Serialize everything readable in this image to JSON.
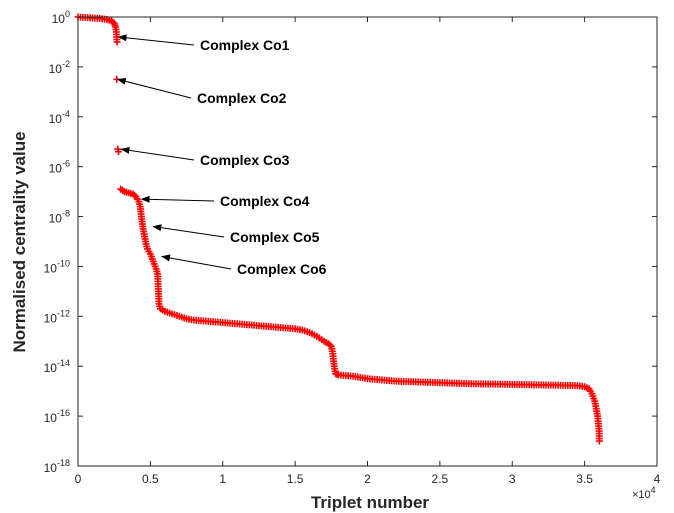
{
  "chart_data": {
    "type": "scatter",
    "xlabel": "Triplet number",
    "ylabel": "Normalised centrality value",
    "x_multiplier": "×10",
    "x_multiplier_exp": "4",
    "xlim": [
      0,
      40000
    ],
    "ylim_log10": [
      -18,
      0
    ],
    "yscale": "log",
    "grid": false,
    "marker": "+",
    "color": "#ff0000",
    "x_ticks": [
      {
        "value": 0,
        "label": "0"
      },
      {
        "value": 5000,
        "label": "0.5"
      },
      {
        "value": 10000,
        "label": "1"
      },
      {
        "value": 15000,
        "label": "1.5"
      },
      {
        "value": 20000,
        "label": "2"
      },
      {
        "value": 25000,
        "label": "2.5"
      },
      {
        "value": 30000,
        "label": "3"
      },
      {
        "value": 35000,
        "label": "3.5"
      },
      {
        "value": 40000,
        "label": "4"
      }
    ],
    "y_ticks": [
      {
        "exp": 0,
        "base": "10",
        "sup": "0"
      },
      {
        "exp": -2,
        "base": "10",
        "sup": "-2"
      },
      {
        "exp": -4,
        "base": "10",
        "sup": "-4"
      },
      {
        "exp": -6,
        "base": "10",
        "sup": "-6"
      },
      {
        "exp": -8,
        "base": "10",
        "sup": "-8"
      },
      {
        "exp": -10,
        "base": "10",
        "sup": "-10"
      },
      {
        "exp": -12,
        "base": "10",
        "sup": "-12"
      },
      {
        "exp": -14,
        "base": "10",
        "sup": "-14"
      },
      {
        "exp": -16,
        "base": "10",
        "sup": "-16"
      },
      {
        "exp": -18,
        "base": "10",
        "sup": "-18"
      }
    ],
    "series_log10": [
      [
        0,
        0.0
      ],
      [
        500,
        -0.02
      ],
      [
        1000,
        -0.04
      ],
      [
        1500,
        -0.06
      ],
      [
        2000,
        -0.1
      ],
      [
        2300,
        -0.15
      ],
      [
        2500,
        -0.25
      ],
      [
        2600,
        -0.4
      ],
      [
        2650,
        -0.6
      ],
      [
        2700,
        -1.0
      ],
      [
        2680,
        -2.5
      ],
      [
        2750,
        -5.3
      ],
      [
        2800,
        -5.4
      ],
      [
        2950,
        -6.9
      ],
      [
        3200,
        -7.0
      ],
      [
        3500,
        -7.05
      ],
      [
        3800,
        -7.1
      ],
      [
        4000,
        -7.2
      ],
      [
        4200,
        -7.4
      ],
      [
        4300,
        -7.6
      ],
      [
        4400,
        -8.1
      ],
      [
        4500,
        -8.5
      ],
      [
        4600,
        -8.8
      ],
      [
        4700,
        -9.1
      ],
      [
        4800,
        -9.3
      ],
      [
        5000,
        -9.5
      ],
      [
        5200,
        -9.8
      ],
      [
        5400,
        -10.1
      ],
      [
        5500,
        -10.3
      ],
      [
        5600,
        -11.5
      ],
      [
        5700,
        -11.7
      ],
      [
        6000,
        -11.8
      ],
      [
        6500,
        -11.9
      ],
      [
        7000,
        -12.0
      ],
      [
        7500,
        -12.1
      ],
      [
        8000,
        -12.15
      ],
      [
        9000,
        -12.2
      ],
      [
        10000,
        -12.25
      ],
      [
        11000,
        -12.3
      ],
      [
        12000,
        -12.35
      ],
      [
        13000,
        -12.4
      ],
      [
        14000,
        -12.45
      ],
      [
        15000,
        -12.5
      ],
      [
        15500,
        -12.55
      ],
      [
        16000,
        -12.65
      ],
      [
        16500,
        -12.8
      ],
      [
        17000,
        -13.0
      ],
      [
        17300,
        -13.1
      ],
      [
        17500,
        -13.2
      ],
      [
        17600,
        -13.5
      ],
      [
        17700,
        -14.0
      ],
      [
        17800,
        -14.3
      ],
      [
        18000,
        -14.35
      ],
      [
        19000,
        -14.4
      ],
      [
        20000,
        -14.5
      ],
      [
        21000,
        -14.55
      ],
      [
        22000,
        -14.6
      ],
      [
        23000,
        -14.62
      ],
      [
        24000,
        -14.64
      ],
      [
        25000,
        -14.66
      ],
      [
        26000,
        -14.68
      ],
      [
        27000,
        -14.7
      ],
      [
        28000,
        -14.71
      ],
      [
        29000,
        -14.72
      ],
      [
        30000,
        -14.73
      ],
      [
        31000,
        -14.74
      ],
      [
        32000,
        -14.75
      ],
      [
        33000,
        -14.76
      ],
      [
        34000,
        -14.77
      ],
      [
        34500,
        -14.78
      ],
      [
        35000,
        -14.82
      ],
      [
        35300,
        -14.9
      ],
      [
        35500,
        -15.1
      ],
      [
        35700,
        -15.4
      ],
      [
        35800,
        -15.7
      ],
      [
        35900,
        -16.0
      ],
      [
        35950,
        -16.3
      ],
      [
        36000,
        -16.6
      ],
      [
        36020,
        -17.0
      ]
    ],
    "annotations": [
      {
        "text": "Complex Co1",
        "target": [
          2800,
          -0.8
        ]
      },
      {
        "text": "Complex Co2",
        "target": [
          2750,
          -2.5
        ]
      },
      {
        "text": "Complex Co3",
        "target": [
          3000,
          -5.3
        ]
      },
      {
        "text": "Complex Co4",
        "target": [
          4400,
          -7.3
        ]
      },
      {
        "text": "Complex Co5",
        "target": [
          5200,
          -8.4
        ]
      },
      {
        "text": "Complex Co6",
        "target": [
          5800,
          -9.6
        ]
      }
    ]
  }
}
